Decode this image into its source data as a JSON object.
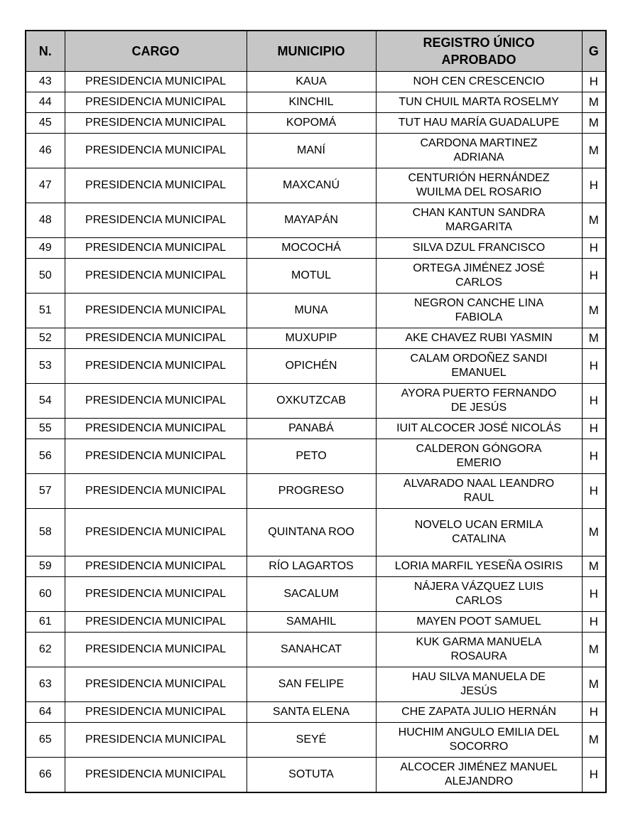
{
  "document": {
    "type": "approved-registry-table",
    "language": "es"
  },
  "colors": {
    "header_bg": "#c6c6c6",
    "border": "#000000",
    "text": "#000000",
    "page_bg": "#ffffff"
  },
  "table": {
    "headers": [
      "N.",
      "CARGO",
      "MUNICIPIO",
      "REGISTRO ÚNICO\nAPROBADO",
      "G"
    ],
    "rows": [
      {
        "n": "43",
        "cargo": "PRESIDENCIA MUNICIPAL",
        "municipio": "KAUA",
        "registro": "NOH CEN CRESCENCIO",
        "g": "H",
        "tall": false
      },
      {
        "n": "44",
        "cargo": "PRESIDENCIA MUNICIPAL",
        "municipio": "KINCHIL",
        "registro": "TUN CHUIL MARTA ROSELMY",
        "g": "M",
        "tall": false
      },
      {
        "n": "45",
        "cargo": "PRESIDENCIA MUNICIPAL",
        "municipio": "KOPOMÁ",
        "registro": "TUT HAU MARÍA GUADALUPE",
        "g": "M",
        "tall": false
      },
      {
        "n": "46",
        "cargo": "PRESIDENCIA MUNICIPAL",
        "municipio": "MANÍ",
        "registro": "CARDONA MARTINEZ\nADRIANA",
        "g": "M",
        "tall": false
      },
      {
        "n": "47",
        "cargo": "PRESIDENCIA MUNICIPAL",
        "municipio": "MAXCANÚ",
        "registro": "CENTURIÓN HERNÁNDEZ\nWUILMA DEL ROSARIO",
        "g": "H",
        "tall": false
      },
      {
        "n": "48",
        "cargo": "PRESIDENCIA MUNICIPAL",
        "municipio": "MAYAPÁN",
        "registro": "CHAN KANTUN SANDRA\nMARGARITA",
        "g": "M",
        "tall": false
      },
      {
        "n": "49",
        "cargo": "PRESIDENCIA MUNICIPAL",
        "municipio": "MOCOCHÁ",
        "registro": "SILVA DZUL FRANCISCO",
        "g": "H",
        "tall": false
      },
      {
        "n": "50",
        "cargo": "PRESIDENCIA MUNICIPAL",
        "municipio": "MOTUL",
        "registro": "ORTEGA JIMÉNEZ JOSÉ\nCARLOS",
        "g": "H",
        "tall": false
      },
      {
        "n": "51",
        "cargo": "PRESIDENCIA MUNICIPAL",
        "municipio": "MUNA",
        "registro": "NEGRON CANCHE LINA\nFABIOLA",
        "g": "M",
        "tall": false
      },
      {
        "n": "52",
        "cargo": "PRESIDENCIA MUNICIPAL",
        "municipio": "MUXUPIP",
        "registro": "AKE CHAVEZ RUBI YASMIN",
        "g": "M",
        "tall": false
      },
      {
        "n": "53",
        "cargo": "PRESIDENCIA MUNICIPAL",
        "municipio": "OPICHÉN",
        "registro": "CALAM ORDOÑEZ SANDI\nEMANUEL",
        "g": "H",
        "tall": false
      },
      {
        "n": "54",
        "cargo": "PRESIDENCIA MUNICIPAL",
        "municipio": "OXKUTZCAB",
        "registro": "AYORA PUERTO FERNANDO\nDE JESÚS",
        "g": "H",
        "tall": false
      },
      {
        "n": "55",
        "cargo": "PRESIDENCIA MUNICIPAL",
        "municipio": "PANABÁ",
        "registro": "IUIT ALCOCER JOSÉ NICOLÁS",
        "g": "H",
        "tall": false
      },
      {
        "n": "56",
        "cargo": "PRESIDENCIA MUNICIPAL",
        "municipio": "PETO",
        "registro": "CALDERON GÓNGORA\nEMERIO",
        "g": "H",
        "tall": false
      },
      {
        "n": "57",
        "cargo": "PRESIDENCIA MUNICIPAL",
        "municipio": "PROGRESO",
        "registro": "ALVARADO NAAL LEANDRO\nRAUL",
        "g": "H",
        "tall": false
      },
      {
        "n": "58",
        "cargo": "PRESIDENCIA MUNICIPAL",
        "municipio": "QUINTANA ROO",
        "registro": "NOVELO UCAN ERMILA\nCATALINA",
        "g": "M",
        "tall": true
      },
      {
        "n": "59",
        "cargo": "PRESIDENCIA MUNICIPAL",
        "municipio": "RÍO LAGARTOS",
        "registro": "LORIA MARFIL YESEÑA OSIRIS",
        "g": "M",
        "tall": false
      },
      {
        "n": "60",
        "cargo": "PRESIDENCIA MUNICIPAL",
        "municipio": "SACALUM",
        "registro": "NÁJERA VÁZQUEZ LUIS\nCARLOS",
        "g": "H",
        "tall": false
      },
      {
        "n": "61",
        "cargo": "PRESIDENCIA MUNICIPAL",
        "municipio": "SAMAHIL",
        "registro": "MAYEN POOT SAMUEL",
        "g": "H",
        "tall": false
      },
      {
        "n": "62",
        "cargo": "PRESIDENCIA MUNICIPAL",
        "municipio": "SANAHCAT",
        "registro": "KUK GARMA MANUELA\nROSAURA",
        "g": "M",
        "tall": false
      },
      {
        "n": "63",
        "cargo": "PRESIDENCIA MUNICIPAL",
        "municipio": "SAN FELIPE",
        "registro": "HAU SILVA MANUELA DE\nJESÚS",
        "g": "M",
        "tall": false
      },
      {
        "n": "64",
        "cargo": "PRESIDENCIA MUNICIPAL",
        "municipio": "SANTA ELENA",
        "registro": "CHE ZAPATA JULIO HERNÁN",
        "g": "H",
        "tall": false
      },
      {
        "n": "65",
        "cargo": "PRESIDENCIA MUNICIPAL",
        "municipio": "SEYÉ",
        "registro": "HUCHIM ANGULO EMILIA DEL\nSOCORRO",
        "g": "M",
        "tall": false
      },
      {
        "n": "66",
        "cargo": "PRESIDENCIA MUNICIPAL",
        "municipio": "SOTUTA",
        "registro": "ALCOCER JIMÉNEZ MANUEL\nALEJANDRO",
        "g": "H",
        "tall": false
      }
    ]
  }
}
